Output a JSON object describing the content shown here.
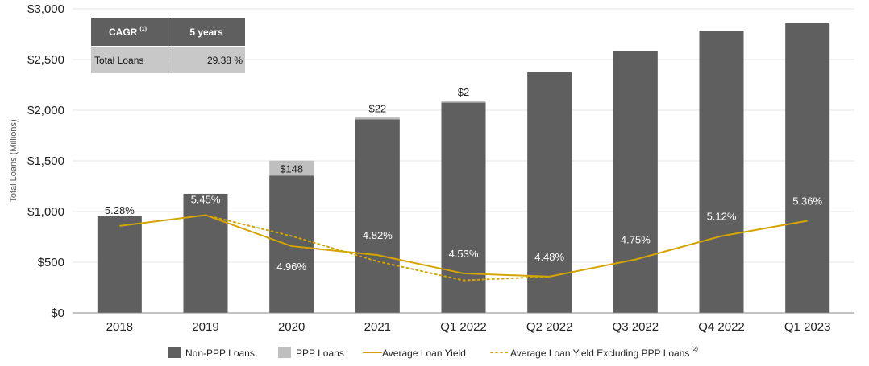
{
  "chart_data": {
    "type": "bar",
    "ylabel": "Total Loans (Millions)",
    "ylim": [
      0,
      3000
    ],
    "y_ticks": [
      "$0",
      "$500",
      "$1,000",
      "$1,500",
      "$2,000",
      "$2,500",
      "$3,000"
    ],
    "grid": true,
    "categories": [
      "2018",
      "2019",
      "2020",
      "2021",
      "Q1 2022",
      "Q2 2022",
      "Q3 2022",
      "Q4 2022",
      "Q1 2023"
    ],
    "series": [
      {
        "name": "Non-PPP Loans",
        "color": "#5f5f5f",
        "values": [
          955,
          1175,
          1355,
          1910,
          2075,
          2375,
          2580,
          2785,
          2865
        ]
      },
      {
        "name": "PPP Loans",
        "color": "#bfbfbf",
        "values": [
          0,
          0,
          148,
          22,
          2,
          0,
          0,
          0,
          0
        ],
        "labels": [
          "",
          "",
          "$148",
          "$22",
          "$2",
          "",
          "",
          "",
          ""
        ]
      }
    ],
    "yield_series": [
      {
        "name": "Average Loan Yield",
        "color": "#d4a500",
        "style": "solid",
        "values": [
          5.28,
          5.45,
          4.96,
          4.82,
          4.53,
          4.48,
          4.75,
          5.12,
          5.36
        ],
        "labels": [
          "5.28%",
          "5.45%",
          "4.96%",
          "4.82%",
          "4.53%",
          "4.48%",
          "4.75%",
          "5.12%",
          "5.36%"
        ]
      },
      {
        "name": "Average Loan Yield Excluding PPP Loans",
        "color": "#d4a500",
        "style": "dotted",
        "values": [
          null,
          5.45,
          5.12,
          4.72,
          4.42,
          4.48,
          null,
          null,
          null
        ]
      }
    ],
    "legend": {
      "position": "bottom",
      "items": [
        {
          "label": "Non-PPP Loans",
          "kind": "box",
          "color": "#5f5f5f"
        },
        {
          "label": "PPP Loans",
          "kind": "box",
          "color": "#bfbfbf"
        },
        {
          "label": "Average Loan Yield",
          "kind": "line",
          "color": "#d4a500"
        },
        {
          "label": "Average Loan Yield Excluding PPP Loans",
          "kind": "dotted",
          "color": "#d4a500",
          "sup": "(2)"
        }
      ]
    },
    "cagr_table": {
      "header": [
        "CAGR",
        "5 years"
      ],
      "header_sup": "(1)",
      "row": [
        "Total Loans",
        "29.38 %"
      ]
    }
  }
}
